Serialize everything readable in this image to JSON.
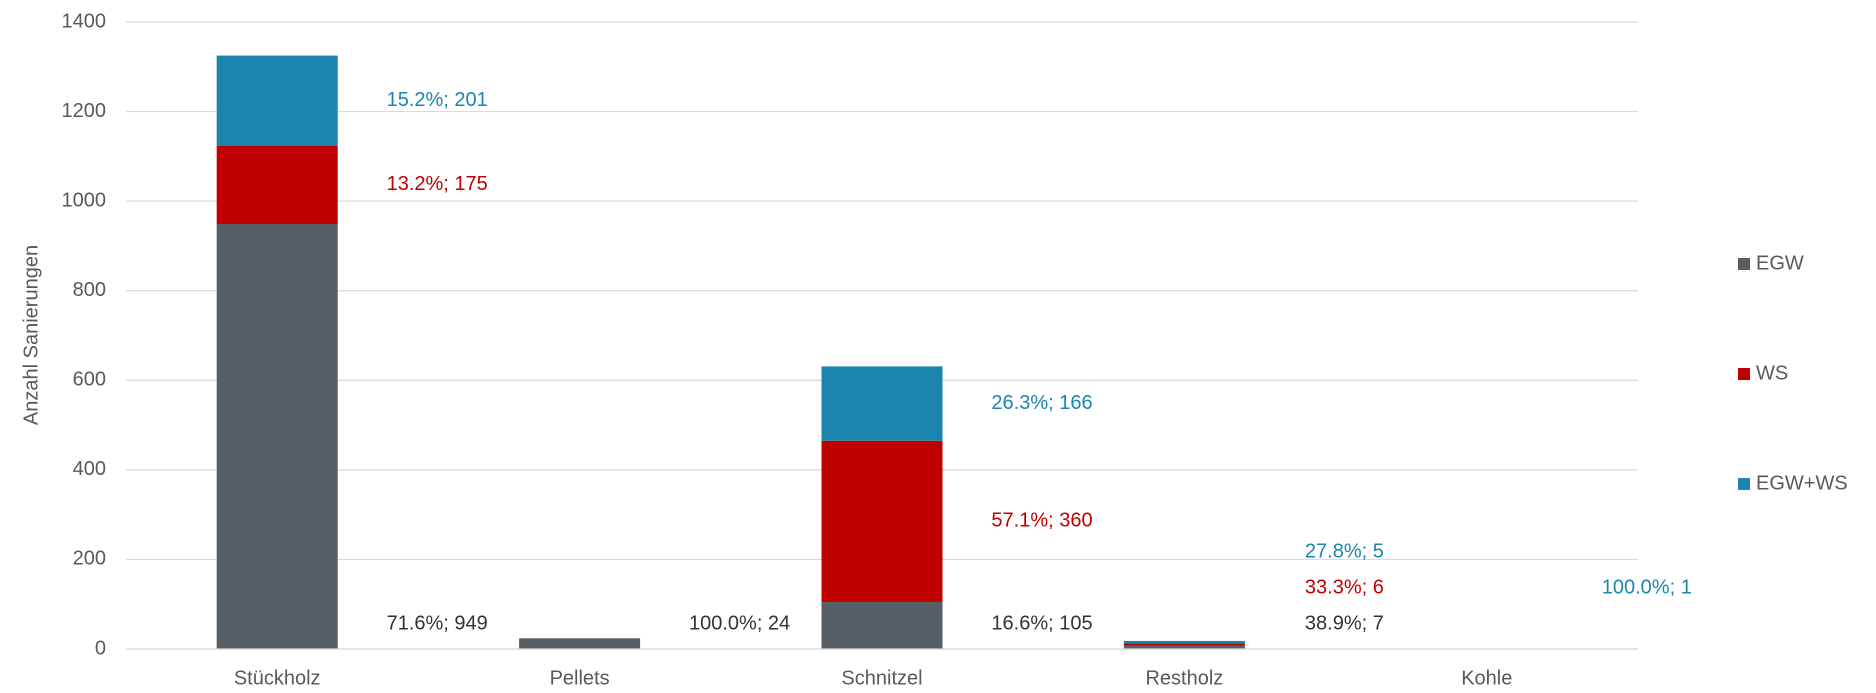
{
  "chart_data": {
    "type": "stacked_bar",
    "y_label": "Anzahl Sanierungen",
    "categories": [
      "Stückholz",
      "Pellets",
      "Schnitzel",
      "Restholz",
      "Kohle"
    ],
    "series": [
      {
        "name": "EGW",
        "color": "#575e64",
        "label_color": "#333333",
        "values": [
          949,
          24,
          105,
          7,
          0
        ],
        "value_labels": [
          "71.6%; 949",
          "100.0%; 24",
          "16.6%; 105",
          "38.9%; 7",
          null
        ]
      },
      {
        "name": "WS",
        "color": "#c00000",
        "label_color": "#c00000",
        "values": [
          175,
          0,
          360,
          6,
          0
        ],
        "value_labels": [
          "13.2%; 175",
          null,
          "57.1%; 360",
          "33.3%; 6",
          null
        ]
      },
      {
        "name": "EGW+WS",
        "color": "#1a86ad",
        "label_color": "#1a86ad",
        "values": [
          201,
          0,
          166,
          5,
          1
        ],
        "value_labels": [
          "15.2%; 201",
          null,
          "26.3%; 166",
          "27.8%; 5",
          "100.0%; 1"
        ]
      }
    ],
    "ylim": [
      0,
      1400
    ],
    "yticks": [
      0,
      200,
      400,
      600,
      800,
      1000,
      1200,
      1400
    ],
    "grid": true,
    "legend": "right"
  }
}
